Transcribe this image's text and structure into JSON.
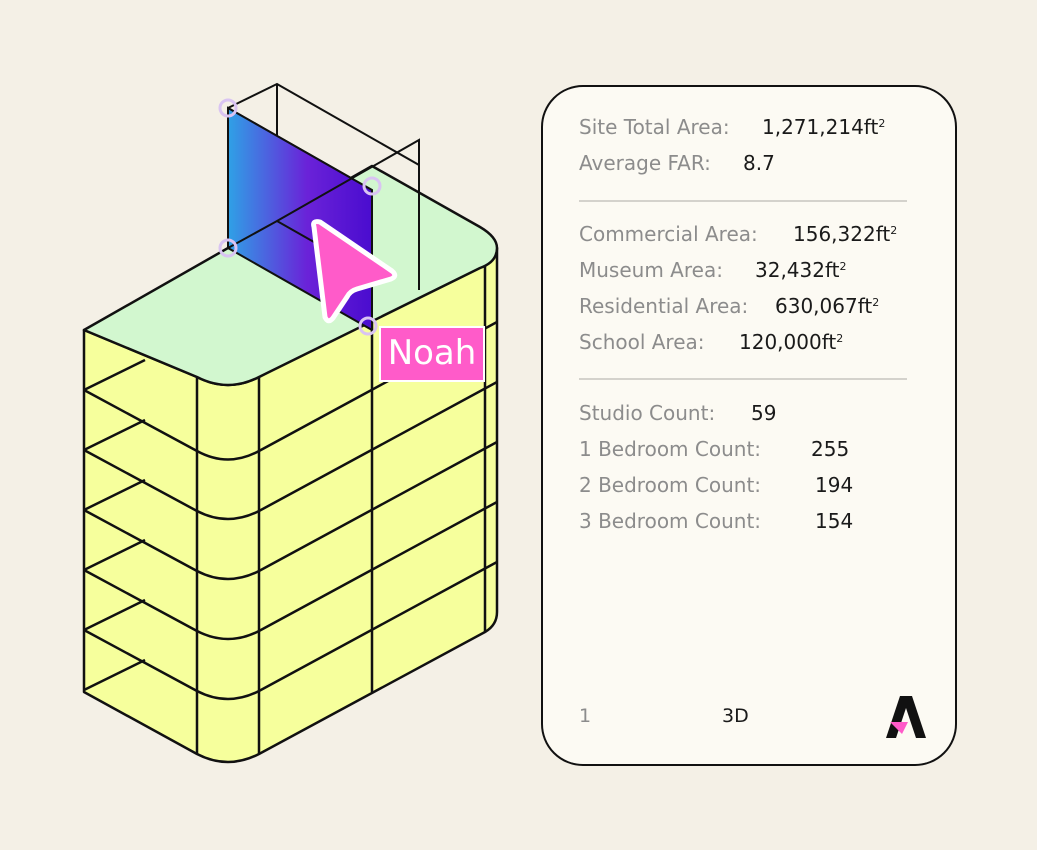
{
  "site": {
    "total_area_label": "Site Total Area:",
    "total_area_value": "1,271,214ft",
    "total_area_sup": "2",
    "avg_far_label": "Average FAR:",
    "avg_far_value": "8.7"
  },
  "areas": [
    {
      "label": "Commercial Area:",
      "value": "156,322ft",
      "sup": "2"
    },
    {
      "label": "Museum Area:",
      "value": "32,432ft",
      "sup": "2"
    },
    {
      "label": "Residential Area:",
      "value": "630,067ft",
      "sup": "2"
    },
    {
      "label": "School Area:",
      "value": "120,000ft",
      "sup": "2"
    }
  ],
  "counts": [
    {
      "label": "Studio Count:",
      "value": "59"
    },
    {
      "label": "1 Bedroom Count:",
      "value": "255"
    },
    {
      "label": "2 Bedroom Count:",
      "value": "194"
    },
    {
      "label": "3 Bedroom Count:",
      "value": "154"
    }
  ],
  "footer": {
    "page": "1",
    "mode": "3D"
  },
  "cursor": {
    "name": "Noah"
  },
  "colors": {
    "background": "#f4f0e6",
    "floor_fill": "#f6ff9c",
    "roof_fill": "#d2f7cf",
    "cursor_pink": "#ff5bc9",
    "panel_gradient_start": "#2fa1e6",
    "panel_gradient_end": "#4a0ccf",
    "handle": "#d9c4f2"
  },
  "icons": {
    "logo": "brand-a-logo",
    "cursor": "pointer-cursor-icon"
  }
}
